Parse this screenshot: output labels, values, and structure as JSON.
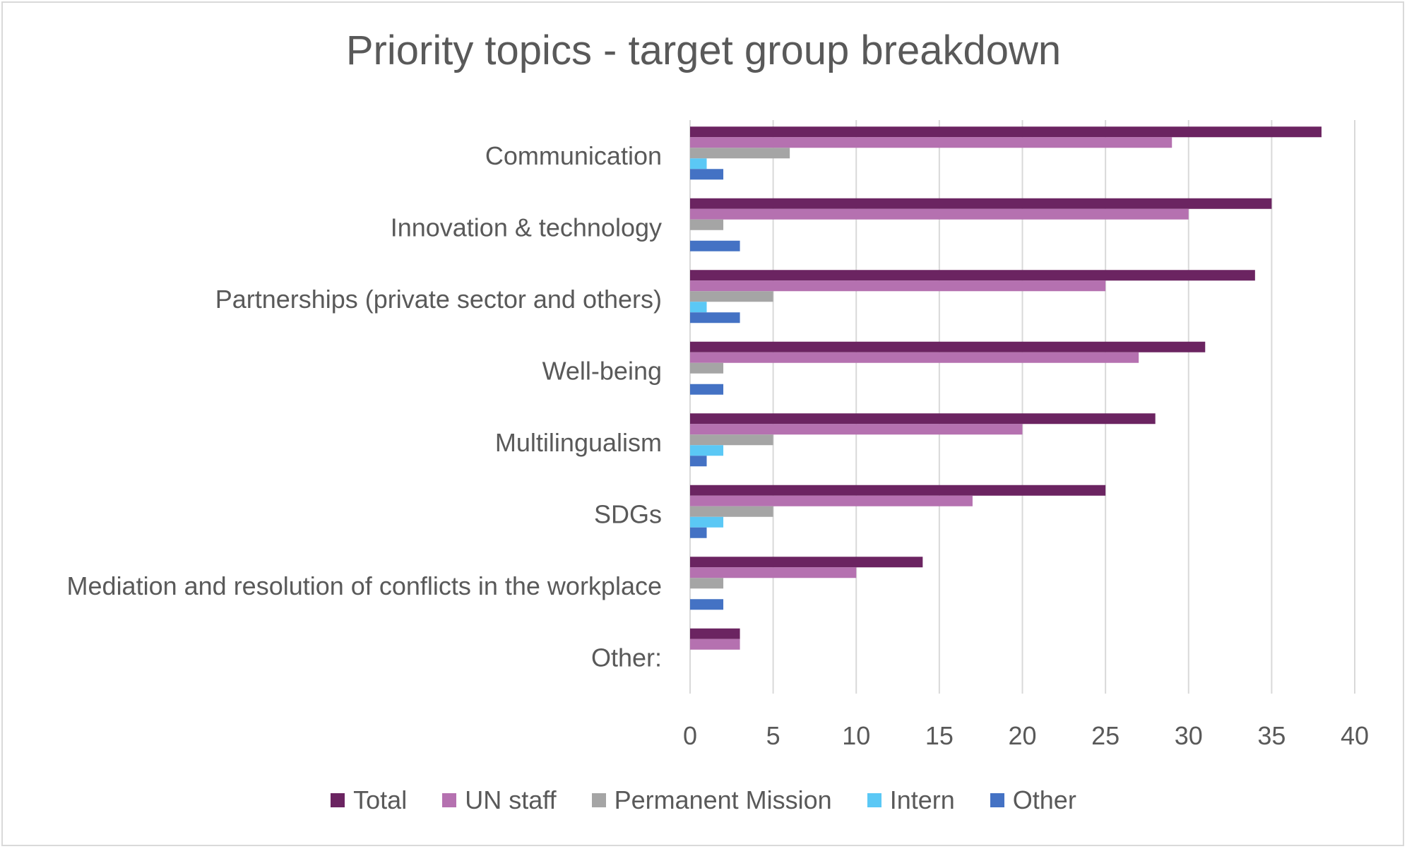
{
  "chart_data": {
    "type": "bar",
    "orientation": "horizontal",
    "title": "Priority topics - target group breakdown",
    "xlabel": "",
    "ylabel": "",
    "xlim": [
      0,
      40
    ],
    "x_ticks": [
      "0",
      "5",
      "10",
      "15",
      "20",
      "25",
      "30",
      "35",
      "40"
    ],
    "grid": "vertical",
    "legend_position": "bottom",
    "categories": [
      "Communication",
      "Innovation & technology",
      "Partnerships (private sector and others)",
      "Well-being",
      "Multilingualism",
      "SDGs",
      "Mediation and resolution of conflicts in the workplace",
      "Other:"
    ],
    "series": [
      {
        "name": "Total",
        "color": "#6b2461",
        "values": [
          38,
          35,
          34,
          31,
          28,
          25,
          14,
          3
        ]
      },
      {
        "name": "UN staff",
        "color": "#b571b0",
        "values": [
          29,
          30,
          25,
          27,
          20,
          17,
          10,
          3
        ]
      },
      {
        "name": "Permanent Mission",
        "color": "#a5a5a5",
        "values": [
          6,
          2,
          5,
          2,
          5,
          5,
          2,
          0
        ]
      },
      {
        "name": "Intern",
        "color": "#5bc8f5",
        "values": [
          1,
          0,
          1,
          0,
          2,
          2,
          0,
          0
        ]
      },
      {
        "name": "Other",
        "color": "#4472c4",
        "values": [
          2,
          3,
          3,
          2,
          1,
          1,
          2,
          0
        ]
      }
    ]
  }
}
